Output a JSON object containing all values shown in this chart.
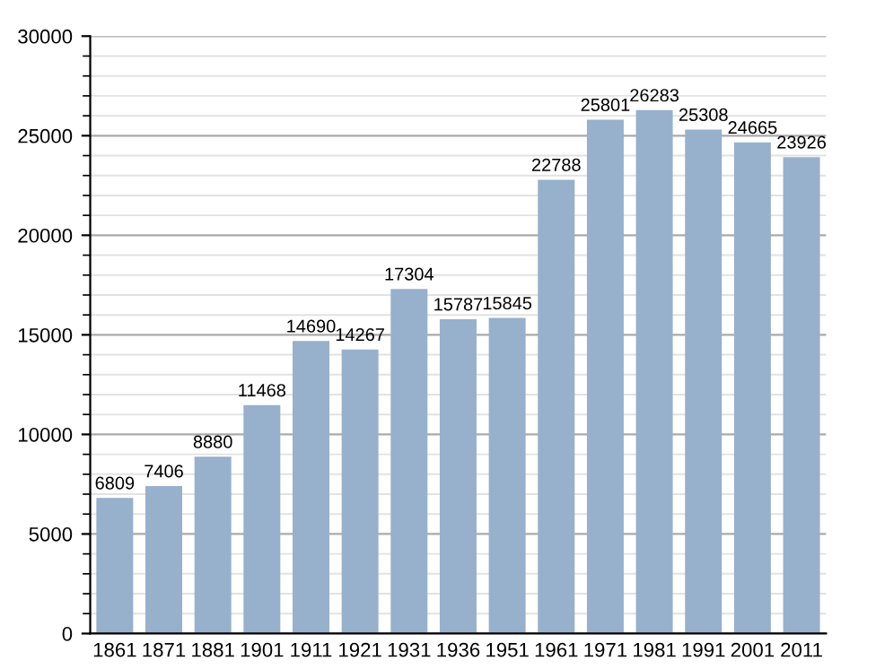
{
  "chart_data": {
    "type": "bar",
    "categories": [
      "1861",
      "1871",
      "1881",
      "1901",
      "1911",
      "1921",
      "1931",
      "1936",
      "1951",
      "1961",
      "1971",
      "1981",
      "1991",
      "2001",
      "2011"
    ],
    "values": [
      6809,
      7406,
      8880,
      11468,
      14690,
      14267,
      17304,
      15787,
      15845,
      22788,
      25801,
      26283,
      25308,
      24665,
      23926
    ],
    "color": "#97b0cc",
    "ylim": [
      0,
      30000
    ],
    "yticks": [
      0,
      5000,
      10000,
      15000,
      20000,
      25000,
      30000
    ],
    "grid": "y",
    "data_labels": true
  }
}
